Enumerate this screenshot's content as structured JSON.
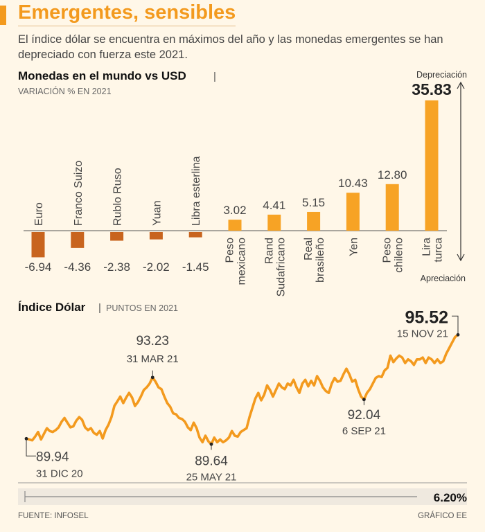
{
  "header": {
    "title": "Emergentes, sensibles",
    "subtitle": "El índice dólar se encuentra en máximos del año y las monedas emergentes se han depreciado con fuerza este 2021."
  },
  "chart_data": [
    {
      "type": "bar",
      "title": "Monedas en el mundo vs USD",
      "subtitle": "VARIACIÓN % EN 2021",
      "categories": [
        [
          "Euro"
        ],
        [
          "Franco Suizo"
        ],
        [
          "Rublo Ruso"
        ],
        [
          "Yuan"
        ],
        [
          "Libra esterlina"
        ],
        [
          "Peso",
          "mexicano"
        ],
        [
          "Rand",
          "Sudafricano"
        ],
        [
          "Real",
          "brasileño"
        ],
        [
          "Yen"
        ],
        [
          "Peso",
          "chileno"
        ],
        [
          "Lira",
          "turca"
        ]
      ],
      "values": [
        -6.94,
        -4.36,
        -2.38,
        -2.02,
        -1.45,
        3.02,
        4.41,
        5.15,
        10.43,
        12.8,
        35.83
      ],
      "value_labels": [
        "-6.94",
        "-4.36",
        "-2.38",
        "-2.02",
        "-1.45",
        "3.02",
        "4.41",
        "5.15",
        "10.43",
        "12.80",
        "35.83"
      ],
      "axis_top_label": "Depreciación",
      "axis_bottom_label": "Apreciación",
      "colors": {
        "negative": "#c8641e",
        "positive": "#f7a325"
      }
    },
    {
      "type": "line",
      "title": "Índice Dólar",
      "subtitle": "PUNTOS EN 2021",
      "x_range": [
        "2020-12-31",
        "2021-11-15"
      ],
      "ylim": [
        88.5,
        96.2
      ],
      "series": [
        {
          "name": "Índice Dólar",
          "values": [
            89.94,
            89.9,
            89.85,
            90.05,
            90.3,
            89.9,
            90.2,
            90.5,
            90.35,
            90.3,
            90.4,
            90.55,
            90.85,
            91.05,
            90.8,
            90.55,
            90.6,
            90.9,
            91.1,
            90.95,
            90.55,
            90.4,
            90.5,
            90.25,
            90.15,
            90.35,
            89.95,
            90.4,
            90.7,
            91.1,
            91.7,
            91.95,
            92.2,
            91.85,
            92.15,
            92.4,
            92.15,
            91.7,
            91.9,
            92.2,
            92.55,
            92.7,
            92.9,
            93.23,
            93.0,
            92.7,
            92.6,
            92.2,
            91.85,
            91.65,
            91.3,
            91.25,
            91.05,
            91.0,
            90.85,
            90.55,
            90.4,
            90.8,
            90.5,
            90.0,
            89.75,
            90.1,
            89.8,
            89.64,
            90.0,
            89.75,
            89.9,
            89.75,
            89.85,
            90.0,
            90.35,
            90.1,
            90.05,
            90.3,
            90.4,
            90.5,
            91.1,
            91.6,
            92.1,
            92.4,
            92.0,
            92.3,
            92.8,
            92.55,
            92.2,
            92.55,
            92.9,
            92.7,
            92.6,
            92.9,
            92.8,
            93.1,
            92.7,
            92.4,
            92.9,
            93.1,
            92.75,
            93.05,
            92.8,
            93.3,
            93.05,
            92.7,
            92.5,
            92.4,
            92.9,
            93.2,
            93.0,
            93.05,
            93.4,
            93.7,
            93.4,
            93.0,
            93.1,
            92.6,
            92.2,
            92.04,
            92.4,
            92.6,
            92.9,
            93.2,
            93.3,
            93.25,
            93.6,
            93.75,
            94.4,
            94.05,
            94.25,
            94.4,
            94.3,
            94.0,
            94.2,
            94.1,
            93.9,
            94.2,
            94.2,
            94.3,
            94.0,
            94.3,
            94.2,
            94.0,
            94.2,
            94.0,
            94.1,
            94.5,
            94.8,
            95.1,
            95.4,
            95.52
          ]
        }
      ],
      "annotations": [
        {
          "value": "89.94",
          "date": "31 DIC 20"
        },
        {
          "value": "93.23",
          "date": "31 MAR 21"
        },
        {
          "value": "89.64",
          "date": "25 MAY 21"
        },
        {
          "value": "92.04",
          "date": "6 SEP 21"
        },
        {
          "value": "95.52",
          "date": "15 NOV 21"
        }
      ],
      "summary_change": "6.20%",
      "colors": {
        "line": "#f39a1e"
      }
    }
  ],
  "footer": {
    "source": "FUENTE: INFOSEL",
    "credit": "GRÁFICO EE"
  }
}
